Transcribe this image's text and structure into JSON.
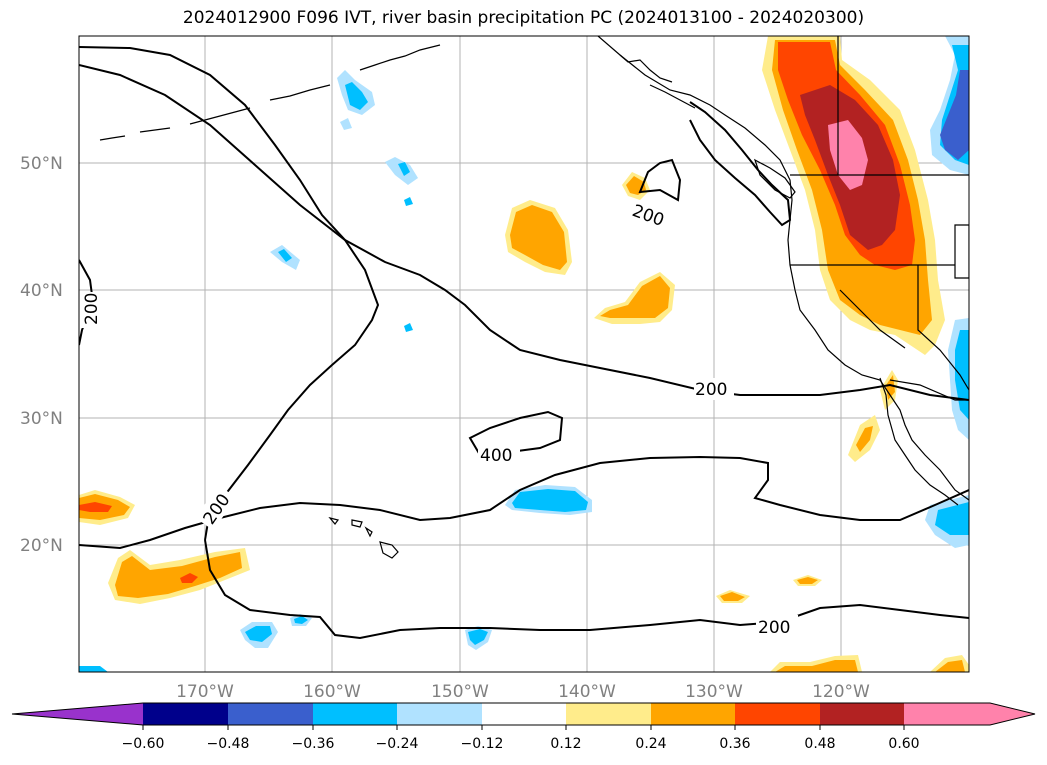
{
  "title": "2024012900 F096 IVT, river basin precipitation PC (2024013100 - 2024020300)",
  "map": {
    "lat_labels": [
      "50°N",
      "40°N",
      "30°N",
      "20°N"
    ],
    "lon_labels": [
      "170°W",
      "160°W",
      "150°W",
      "140°W",
      "130°W",
      "120°W"
    ],
    "contour_labels": [
      "200",
      "200",
      "200",
      "400",
      "200",
      "200"
    ]
  },
  "colorbar": {
    "tick_labels": [
      "−0.60",
      "−0.48",
      "−0.36",
      "−0.24",
      "−0.12",
      "0.12",
      "0.24",
      "0.36",
      "0.48",
      "0.60"
    ],
    "colors": [
      "#9932cc",
      "#00008b",
      "#3a5fcd",
      "#00bfff",
      "#b0e2ff",
      "#ffffff",
      "#ffec8b",
      "#ffa500",
      "#ff4500",
      "#b22222",
      "#ff82ab"
    ]
  }
}
